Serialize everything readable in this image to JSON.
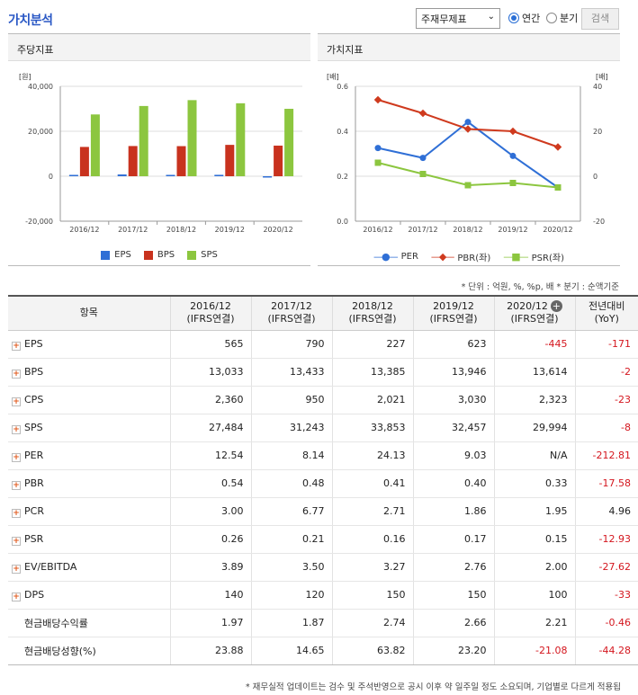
{
  "header": {
    "title": "가치분석",
    "report_select": "주재무제표",
    "radio_annual": "연간",
    "radio_quarter": "분기",
    "search": "검색"
  },
  "panels": {
    "left_title": "주당지표",
    "right_title": "가치지표"
  },
  "unit_note": "* 단위 : 억원, %, %p, 배    * 분기 : 순액기준",
  "footnote": "* 재무실적 업데이트는 검수 및 주석반영으로 공시 이후 약 일주일 정도 소요되며, 기업별로 다르게 적용됩",
  "colors": {
    "eps": "#2f6fd6",
    "bps": "#c8321e",
    "sps": "#8cc63f",
    "per": "#2f6fd6",
    "pbr": "#cf3a1e",
    "psr": "#8cc63f"
  },
  "chart_data": [
    {
      "type": "bar",
      "categories": [
        "2016/12",
        "2017/12",
        "2018/12",
        "2019/12",
        "2020/12"
      ],
      "series": [
        {
          "name": "EPS",
          "values": [
            565,
            790,
            227,
            623,
            -445
          ]
        },
        {
          "name": "BPS",
          "values": [
            13033,
            13433,
            13385,
            13946,
            13614
          ]
        },
        {
          "name": "SPS",
          "values": [
            27484,
            31243,
            33853,
            32457,
            29994
          ]
        }
      ],
      "ylabel": "[원]",
      "ylim": [
        -20000,
        40000
      ],
      "yticks": [
        "40,000",
        "20,000",
        "0",
        "-20,000"
      ],
      "grid": true,
      "legend": "bottom"
    },
    {
      "type": "line",
      "categories": [
        "2016/12",
        "2017/12",
        "2018/12",
        "2019/12",
        "2020/12"
      ],
      "series": [
        {
          "name": "PER",
          "axis": "left",
          "values": [
            12.54,
            8.14,
            24.13,
            9.03,
            null
          ]
        },
        {
          "name": "PBR(좌)",
          "axis": "right",
          "values": [
            0.54,
            0.48,
            0.41,
            0.4,
            0.33
          ]
        },
        {
          "name": "PSR(좌)",
          "axis": "right",
          "values": [
            0.26,
            0.21,
            0.16,
            0.17,
            0.15
          ]
        }
      ],
      "ylabel_left": "[배]",
      "ylabel_right": "[배]",
      "ylim_left": [
        -20,
        40
      ],
      "ylim_right": [
        0,
        0.6
      ],
      "yticks_left": [
        "40",
        "20",
        "0",
        "-20"
      ],
      "yticks_right": [
        "0.6",
        "0.4",
        "0.2",
        "0.0"
      ],
      "grid": true,
      "legend": "bottom"
    }
  ],
  "table": {
    "headers": [
      "항목",
      "2016/12\n(IFRS연결)",
      "2017/12\n(IFRS연결)",
      "2018/12\n(IFRS연결)",
      "2019/12\n(IFRS연결)",
      "2020/12\n(IFRS연결)",
      "전년대비\n(YoY)"
    ],
    "rows": [
      {
        "label": "EPS",
        "expand": true,
        "values": [
          "565",
          "790",
          "227",
          "623",
          "-445",
          "-171"
        ]
      },
      {
        "label": "BPS",
        "expand": true,
        "values": [
          "13,033",
          "13,433",
          "13,385",
          "13,946",
          "13,614",
          "-2"
        ]
      },
      {
        "label": "CPS",
        "expand": true,
        "values": [
          "2,360",
          "950",
          "2,021",
          "3,030",
          "2,323",
          "-23"
        ]
      },
      {
        "label": "SPS",
        "expand": true,
        "values": [
          "27,484",
          "31,243",
          "33,853",
          "32,457",
          "29,994",
          "-8"
        ]
      },
      {
        "label": "PER",
        "expand": true,
        "values": [
          "12.54",
          "8.14",
          "24.13",
          "9.03",
          "N/A",
          "-212.81"
        ]
      },
      {
        "label": "PBR",
        "expand": true,
        "values": [
          "0.54",
          "0.48",
          "0.41",
          "0.40",
          "0.33",
          "-17.58"
        ]
      },
      {
        "label": "PCR",
        "expand": true,
        "values": [
          "3.00",
          "6.77",
          "2.71",
          "1.86",
          "1.95",
          "4.96"
        ]
      },
      {
        "label": "PSR",
        "expand": true,
        "values": [
          "0.26",
          "0.21",
          "0.16",
          "0.17",
          "0.15",
          "-12.93"
        ]
      },
      {
        "label": "EV/EBITDA",
        "expand": true,
        "values": [
          "3.89",
          "3.50",
          "3.27",
          "2.76",
          "2.00",
          "-27.62"
        ]
      },
      {
        "label": "DPS",
        "expand": true,
        "values": [
          "140",
          "120",
          "150",
          "150",
          "100",
          "-33"
        ]
      },
      {
        "label": "현금배당수익률",
        "expand": false,
        "values": [
          "1.97",
          "1.87",
          "2.74",
          "2.66",
          "2.21",
          "-0.46"
        ]
      },
      {
        "label": "현금배당성향(%)",
        "expand": false,
        "values": [
          "23.88",
          "14.65",
          "63.82",
          "23.20",
          "-21.08",
          "-44.28"
        ]
      }
    ]
  }
}
